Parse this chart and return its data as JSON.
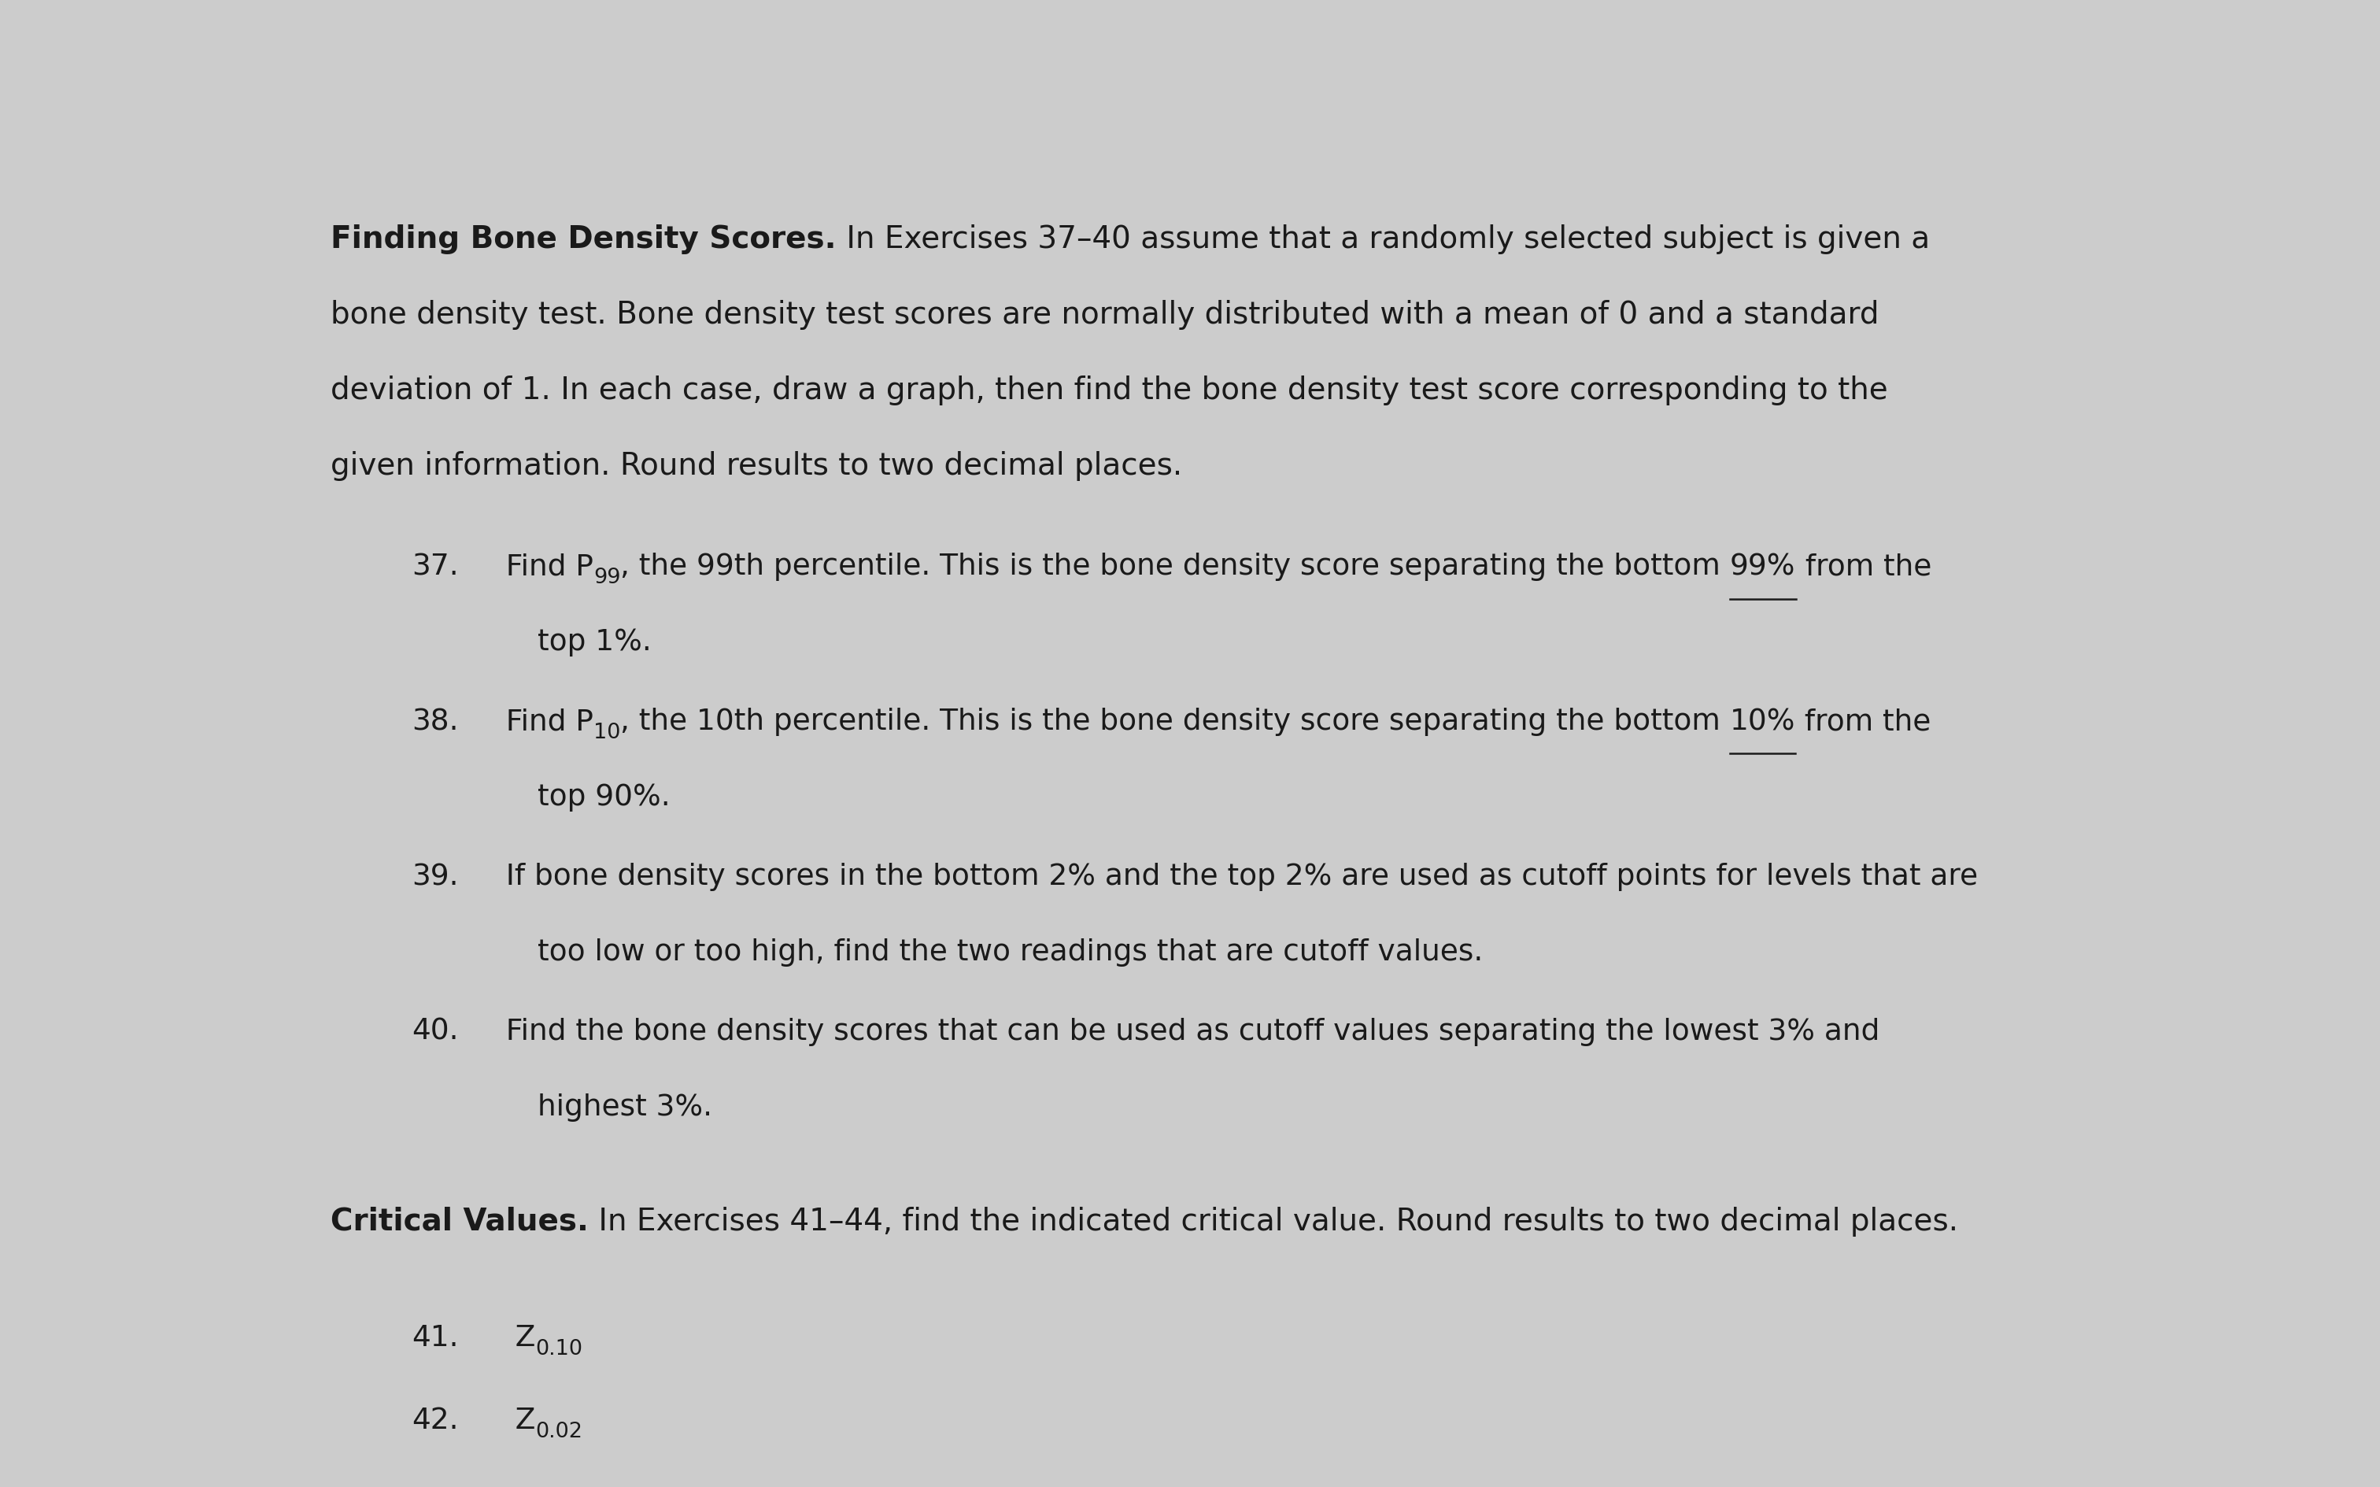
{
  "bg_color": "#cccccc",
  "content_bg": "#ebebeb",
  "title_bold": "Finding Bone Density Scores.",
  "title_normal": " In Exercises 37–40 assume that a randomly selected subject is given a",
  "line2": "bone density test. Bone density test scores are normally distributed with a mean of 0 and a standard",
  "line3": "deviation of 1. In each case, draw a graph, then find the bone density test score corresponding to the",
  "line4": "given information. Round results to two decimal places.",
  "section2_bold": "Critical Values.",
  "section2_normal": " In Exercises 41–44, find the indicated critical value. Round results to two decimal places.",
  "font_size_main": 28,
  "font_size_items": 27,
  "text_color": "#1a1a1a",
  "taskbar_color": "#2255aa"
}
